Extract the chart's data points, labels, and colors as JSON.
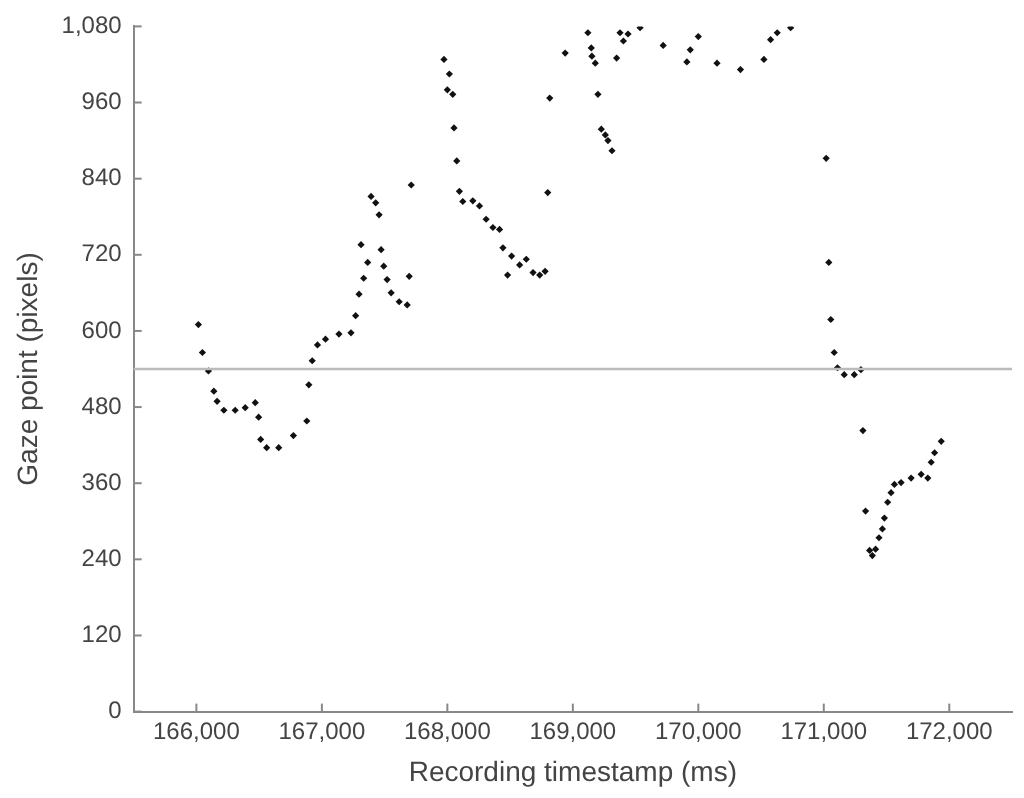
{
  "chart_data": {
    "type": "scatter",
    "xlabel": "Recording timestamp (ms)",
    "ylabel": "Gaze point (pixels)",
    "x": [
      166016,
      166048,
      166096,
      166139,
      166165,
      166219,
      166309,
      166389,
      166469,
      166496,
      166512,
      166560,
      166656,
      166773,
      166880,
      166896,
      166923,
      166965,
      167029,
      167136,
      167232,
      167269,
      167296,
      167333,
      167365,
      167312,
      167392,
      167429,
      167456,
      167472,
      167493,
      167520,
      167552,
      167616,
      167680,
      167696,
      167712,
      167973,
      168000,
      168016,
      168043,
      168053,
      168075,
      168096,
      168123,
      168203,
      168256,
      168309,
      168363,
      168416,
      168443,
      168480,
      168512,
      168576,
      168629,
      168683,
      168736,
      168779,
      168800,
      168816,
      168939,
      169120,
      169147,
      169152,
      169179,
      169200,
      169227,
      169259,
      169280,
      169312,
      169349,
      169376,
      169403,
      169440,
      169536,
      169720,
      169909,
      169936,
      170000,
      170149,
      170336,
      170523,
      170576,
      170629,
      170736,
      171019,
      171040,
      171056,
      171083,
      171109,
      171163,
      171243,
      171296,
      171312,
      171333,
      171365,
      171387,
      171413,
      171440,
      171467,
      171483,
      171509,
      171536,
      171563,
      171616,
      171696,
      171776,
      171829,
      171856,
      171883,
      171936
    ],
    "values": [
      610,
      566,
      537,
      505,
      489,
      475,
      475,
      479,
      487,
      464,
      429,
      416,
      416,
      435,
      458,
      515,
      553,
      578,
      587,
      595,
      597,
      624,
      658,
      683,
      708,
      736,
      812,
      802,
      783,
      728,
      702,
      681,
      660,
      646,
      641,
      686,
      830,
      1028,
      980,
      1005,
      973,
      920,
      868,
      820,
      804,
      805,
      797,
      776,
      763,
      760,
      731,
      688,
      718,
      704,
      713,
      692,
      688,
      694,
      818,
      967,
      1038,
      1070,
      1046,
      1033,
      1022,
      973,
      918,
      909,
      900,
      884,
      1030,
      1070,
      1057,
      1068,
      1078,
      1050,
      1024,
      1043,
      1064,
      1022,
      1012,
      1028,
      1059,
      1070,
      1078,
      872,
      708,
      618,
      566,
      542,
      531,
      531,
      539,
      443,
      316,
      254,
      246,
      256,
      274,
      288,
      305,
      330,
      345,
      358,
      361,
      368,
      374,
      368,
      393,
      408,
      426
    ],
    "color": "#111111",
    "marker": "diamond",
    "xlim": [
      165500,
      172500
    ],
    "xticks": [
      {
        "value": 166000,
        "label": "166,000"
      },
      {
        "value": 167000,
        "label": "167,000"
      },
      {
        "value": 168000,
        "label": "168,000"
      },
      {
        "value": 169000,
        "label": "169,000"
      },
      {
        "value": 170000,
        "label": "170,000"
      },
      {
        "value": 171000,
        "label": "171,000"
      },
      {
        "value": 172000,
        "label": "172,000"
      }
    ],
    "ylim": [
      0,
      1080
    ],
    "yticks": [
      0,
      120,
      240,
      360,
      480,
      600,
      720,
      840,
      960,
      {
        "value": 1080,
        "label": "1,080"
      }
    ],
    "grid": false,
    "legend": false,
    "ref_lines": [
      {
        "axis": "y",
        "value": 540,
        "color": "#bbbbbb"
      }
    ]
  }
}
